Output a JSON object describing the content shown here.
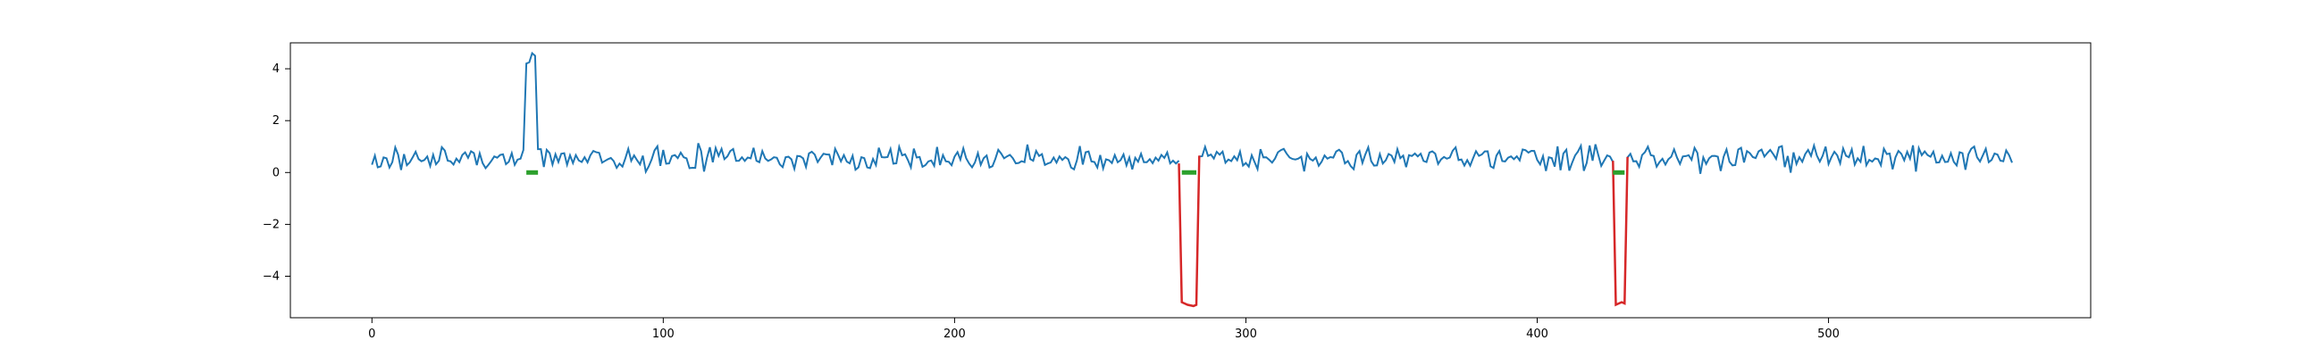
{
  "chart_data": {
    "type": "line",
    "title": "",
    "xlabel": "",
    "ylabel": "",
    "xlim": [
      -28,
      590
    ],
    "ylim": [
      -5.6,
      5.0
    ],
    "x_ticks": [
      0,
      100,
      200,
      300,
      400,
      500
    ],
    "y_ticks": [
      -4,
      -2,
      0,
      2,
      4
    ],
    "grid": false,
    "legend": "none",
    "length": 564,
    "colors": {
      "series": "#1f77b4",
      "dip": "#d62728",
      "marker": "#2ca02c",
      "axes": "#000000"
    },
    "series": [
      {
        "role": "main",
        "color": "#1f77b4",
        "baseline_mean": 0.55,
        "baseline_noise": 0.22,
        "baseline_points": [
          [
            0,
            0.3
          ],
          [
            1,
            0.65
          ],
          [
            2,
            0.2
          ],
          [
            5,
            0.55
          ],
          [
            10,
            0.1
          ],
          [
            15,
            0.8
          ],
          [
            20,
            0.25
          ],
          [
            25,
            0.85
          ],
          [
            30,
            0.4
          ],
          [
            35,
            0.75
          ],
          [
            40,
            0.3
          ],
          [
            45,
            0.7
          ],
          [
            50,
            0.5
          ]
        ],
        "segments": [
          {
            "x_start": 53,
            "x_end": 57,
            "y": [
              4.2,
              4.25,
              4.6,
              4.5,
              0.9
            ],
            "note": "spike"
          },
          {
            "x_start": 279,
            "x_end": 284,
            "y": [
              -5.0,
              -5.1,
              -5.15,
              -5.05,
              0.7
            ]
          },
          {
            "x_start": 427,
            "x_end": 431,
            "y": [
              -5.1,
              -5.05,
              -5.0,
              0.8
            ]
          }
        ]
      },
      {
        "role": "anomaly-dips",
        "color": "#d62728",
        "segments": [
          {
            "x": [
              277,
              278,
              280,
              282,
              283,
              284
            ],
            "y": [
              0.35,
              -5.0,
              -5.1,
              -5.15,
              -5.1,
              0.65
            ]
          },
          {
            "x": [
              426,
              427,
              428,
              429,
              430,
              431
            ],
            "y": [
              0.45,
              -5.1,
              -5.05,
              -5.0,
              -5.05,
              0.6
            ]
          }
        ]
      },
      {
        "role": "zero-markers",
        "color": "#2ca02c",
        "segments": [
          {
            "x": [
              53,
              57
            ],
            "y": [
              0,
              0
            ]
          },
          {
            "x": [
              278,
              283
            ],
            "y": [
              0,
              0
            ]
          },
          {
            "x": [
              426,
              430
            ],
            "y": [
              0,
              0
            ]
          }
        ]
      }
    ]
  }
}
